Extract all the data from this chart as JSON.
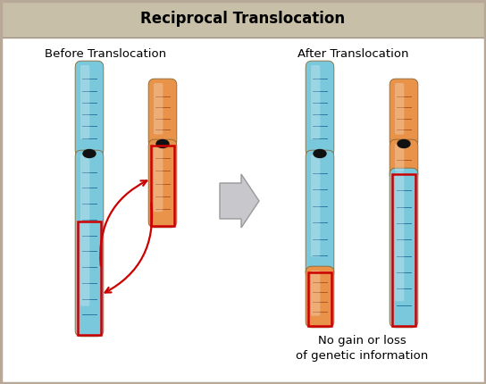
{
  "title": "Reciprocal Translocation",
  "title_bg": "#c8bfa8",
  "main_bg": "#ffffff",
  "border_color": "#b8a898",
  "label_before": "Before Translocation",
  "label_after": "After Translocation",
  "note_text": "No gain or loss\nof genetic information",
  "blue_grad_top": "#b8dde8",
  "blue_mid": "#5ab4cc",
  "blue_dark": "#3888aa",
  "blue_band": "#c8e8f0",
  "blue_band_dark": "#2878a0",
  "orange_grad_top": "#f0b888",
  "orange_mid": "#e07840",
  "orange_band": "#f8c898",
  "orange_band_dark": "#c86030",
  "centromere_color": "#111111",
  "red_box_color": "#cc0000",
  "red_arrow_color": "#cc0000",
  "gray_arrow": "#b8b8c0"
}
